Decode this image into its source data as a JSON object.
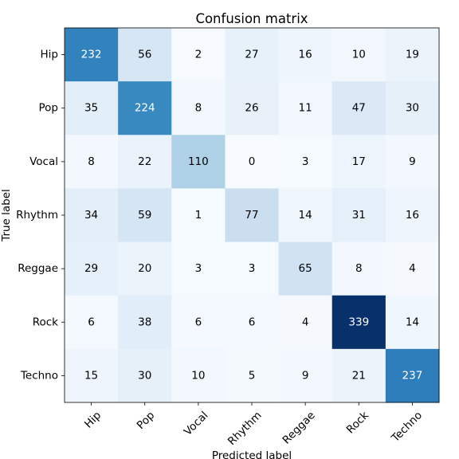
{
  "chart_data": {
    "type": "heatmap",
    "title": "Confusion matrix",
    "xlabel": "Predicted label",
    "ylabel": "True label",
    "x_categories": [
      "Hip",
      "Pop",
      "Vocal",
      "Rhythm",
      "Reggae",
      "Rock",
      "Techno"
    ],
    "y_categories": [
      "Hip",
      "Pop",
      "Vocal",
      "Rhythm",
      "Reggae",
      "Rock",
      "Techno"
    ],
    "values": [
      [
        232,
        56,
        2,
        27,
        16,
        10,
        19
      ],
      [
        35,
        224,
        8,
        26,
        11,
        47,
        30
      ],
      [
        8,
        22,
        110,
        0,
        3,
        17,
        9
      ],
      [
        34,
        59,
        1,
        77,
        14,
        31,
        16
      ],
      [
        29,
        20,
        3,
        3,
        65,
        8,
        4
      ],
      [
        6,
        38,
        6,
        6,
        4,
        339,
        14
      ],
      [
        15,
        30,
        10,
        5,
        9,
        21,
        237
      ]
    ],
    "colormap": "Blues",
    "value_range": [
      0,
      339
    ],
    "grid": false
  }
}
